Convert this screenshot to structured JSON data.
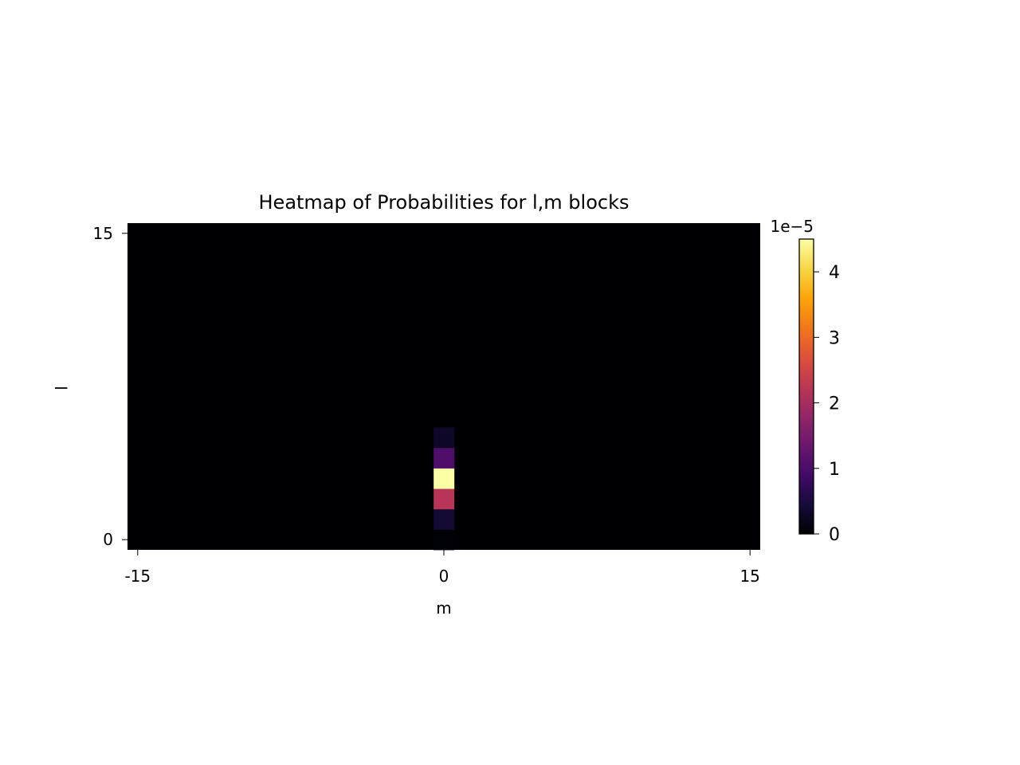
{
  "chart_data": {
    "type": "heatmap",
    "title": "Heatmap of Probabilities for l,m blocks",
    "xlabel": "m",
    "ylabel": "l",
    "x_ticks": [
      {
        "value": -15,
        "label": "-15"
      },
      {
        "value": 0,
        "label": "0"
      },
      {
        "value": 15,
        "label": "15"
      }
    ],
    "y_ticks": [
      {
        "value": 0,
        "label": "0"
      },
      {
        "value": 15,
        "label": "15"
      }
    ],
    "m_range": [
      -15,
      15
    ],
    "l_range": [
      0,
      15
    ],
    "colormap": "inferno",
    "colorbar": {
      "range": [
        0,
        4.5e-05
      ],
      "offset_label": "1e−5",
      "ticks": [
        {
          "value": 0,
          "label": "0"
        },
        {
          "value": 1e-05,
          "label": "1"
        },
        {
          "value": 2e-05,
          "label": "2"
        },
        {
          "value": 3e-05,
          "label": "3"
        },
        {
          "value": 4e-05,
          "label": "4"
        }
      ]
    },
    "background_value": 0,
    "nonzero_cells": [
      {
        "m": 0,
        "l": 0,
        "value": 3e-07
      },
      {
        "m": 0,
        "l": 1,
        "value": 4e-06
      },
      {
        "m": 0,
        "l": 2,
        "value": 2.2e-05
      },
      {
        "m": 0,
        "l": 3,
        "value": 4.5e-05
      },
      {
        "m": 0,
        "l": 4,
        "value": 1.05e-05
      },
      {
        "m": 0,
        "l": 5,
        "value": 3e-06
      }
    ]
  }
}
